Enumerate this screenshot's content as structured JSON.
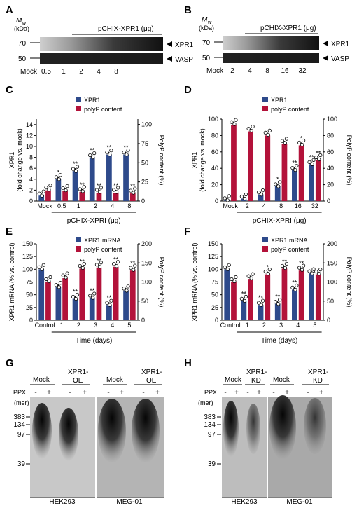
{
  "colors": {
    "blue": "#2e4a8b",
    "red": "#b3123a"
  },
  "blots": {
    "A": {
      "letter": "A",
      "mw": "M",
      "mw_sub": "w",
      "kda": "(kDa)",
      "header": "pCHIX-XPR1 (μg)",
      "marker_hi": "70",
      "marker_lo": "50",
      "band1": "XPR1",
      "band2": "VASP",
      "lanes": [
        "Mock",
        "0.5",
        "1",
        "2",
        "4",
        "8"
      ]
    },
    "B": {
      "letter": "B",
      "mw": "M",
      "mw_sub": "w",
      "kda": "(kDa)",
      "header": "pCHIX-XPR1 (μg)",
      "marker_hi": "70",
      "marker_lo": "50",
      "band1": "XPR1",
      "band2": "VASP",
      "lanes": [
        "Mock",
        "2",
        "4",
        "8",
        "16",
        "32"
      ]
    }
  },
  "chart_data": [
    {
      "panel": "C",
      "type": "bar",
      "categories": [
        "Mock",
        "0.5",
        "1",
        "2",
        "4",
        "8"
      ],
      "series": [
        {
          "name": "XPR1",
          "values": [
            1,
            4,
            5.5,
            8,
            8.5,
            8.5
          ]
        },
        {
          "name": "polyP content",
          "values": [
            14,
            13.2,
            12,
            11,
            11,
            10
          ]
        }
      ],
      "ylabel": "XPR1\n(fold change vs. mock)",
      "y2label": "PolyP content (%)",
      "ylim": [
        0,
        15
      ],
      "yticks": [
        0,
        2,
        4,
        6,
        8,
        10,
        12,
        14
      ],
      "y2lim": [
        0,
        107
      ],
      "y2ticks": [
        0,
        25,
        50,
        75,
        100
      ],
      "xlabel": "pCHIX-XPRI (μg)",
      "stars": [
        "",
        "*",
        "**",
        "**",
        "**",
        "**"
      ],
      "stars2": [
        "",
        "",
        "**",
        "**",
        "**",
        "**"
      ],
      "legend": "top-left"
    },
    {
      "panel": "D",
      "type": "bar",
      "categories": [
        "Mock",
        "2",
        "4",
        "8",
        "16",
        "32"
      ],
      "series": [
        {
          "name": "XPR1",
          "values": [
            1,
            3,
            8,
            18,
            38,
            45
          ]
        },
        {
          "name": "polyP content",
          "values": [
            93,
            85,
            80,
            70,
            68,
            50
          ]
        }
      ],
      "ylabel": "XPR1\n(fold change vs. mock)",
      "y2label": "PolyP content (%)",
      "ylim": [
        0,
        100
      ],
      "yticks": [
        0,
        20,
        40,
        60,
        80,
        100
      ],
      "y2lim": [
        0,
        100
      ],
      "y2ticks": [
        0,
        20,
        40,
        60,
        80,
        100
      ],
      "xlabel": "pCHIX-XPRI (μg)",
      "stars": [
        "",
        "",
        "",
        "*",
        "**",
        "**"
      ],
      "stars2": [
        "",
        "",
        "",
        "",
        "*",
        "**"
      ],
      "legend": "top-left"
    },
    {
      "panel": "E",
      "type": "bar",
      "categories": [
        "Control",
        "1",
        "2",
        "3",
        "4",
        "5"
      ],
      "series": [
        {
          "name": "XPR1 mRNA",
          "values": [
            100,
            65,
            42,
            44,
            30,
            58
          ]
        },
        {
          "name": "polyP content",
          "values": [
            100,
            110,
            135,
            138,
            140,
            130
          ]
        }
      ],
      "ylabel": "XPR1 mRNA (% vs. control)",
      "y2label": "PolyP content (%)",
      "ylim": [
        0,
        150
      ],
      "yticks": [
        0,
        25,
        50,
        75,
        100,
        125,
        150
      ],
      "y2lim": [
        0,
        200
      ],
      "y2ticks": [
        0,
        50,
        100,
        150,
        200
      ],
      "xlabel": "Time (days)",
      "stars": [
        "",
        "",
        "**",
        "**",
        "**",
        ""
      ],
      "stars2": [
        "",
        "",
        "**",
        "**",
        "**",
        "**"
      ],
      "legend": "top-left"
    },
    {
      "panel": "F",
      "type": "bar",
      "categories": [
        "Control",
        "1",
        "2",
        "3",
        "4",
        "5"
      ],
      "series": [
        {
          "name": "XPR1 mRNA",
          "values": [
            100,
            38,
            30,
            32,
            60,
            92
          ]
        },
        {
          "name": "polyP content",
          "values": [
            100,
            108,
            120,
            135,
            130,
            120
          ]
        }
      ],
      "ylabel": "XPR1 mRNA (% vs. control)",
      "y2label": "PolyP content (%)",
      "ylim": [
        0,
        150
      ],
      "yticks": [
        0,
        25,
        50,
        75,
        100,
        125,
        150
      ],
      "y2lim": [
        0,
        200
      ],
      "y2ticks": [
        0,
        50,
        100,
        150,
        200
      ],
      "xlabel": "Time (days)",
      "stars": [
        "",
        "**",
        "**",
        "**",
        "**",
        ""
      ],
      "stars2": [
        "",
        "",
        "*",
        "**",
        "**",
        ""
      ],
      "legend": "top-left"
    }
  ],
  "gels": {
    "G": {
      "letter": "G",
      "group1": "Mock",
      "group2": "XPR1-\nOE",
      "group3": "Mock",
      "group4": "XPR1-\nOE",
      "ppx": "PPX",
      "mer": "(mer)",
      "signs": [
        "-",
        "+",
        "-",
        "+",
        "-",
        "+",
        "-",
        "+"
      ],
      "markers": [
        "383",
        "134",
        "97",
        "39"
      ],
      "cell1": "HEK293",
      "cell2": "MEG-01"
    },
    "H": {
      "letter": "H",
      "group1": "Mock",
      "group2": "XPR1-\nKD",
      "group3": "Mock",
      "group4": "XPR1-\nKD",
      "ppx": "PPX",
      "mer": "(mer)",
      "signs": [
        "-",
        "+",
        "-",
        "+",
        "-",
        "+",
        "-",
        "+"
      ],
      "markers": [
        "383",
        "134",
        "97",
        "39"
      ],
      "cell1": "HEK293",
      "cell2": "MEG-01"
    }
  }
}
